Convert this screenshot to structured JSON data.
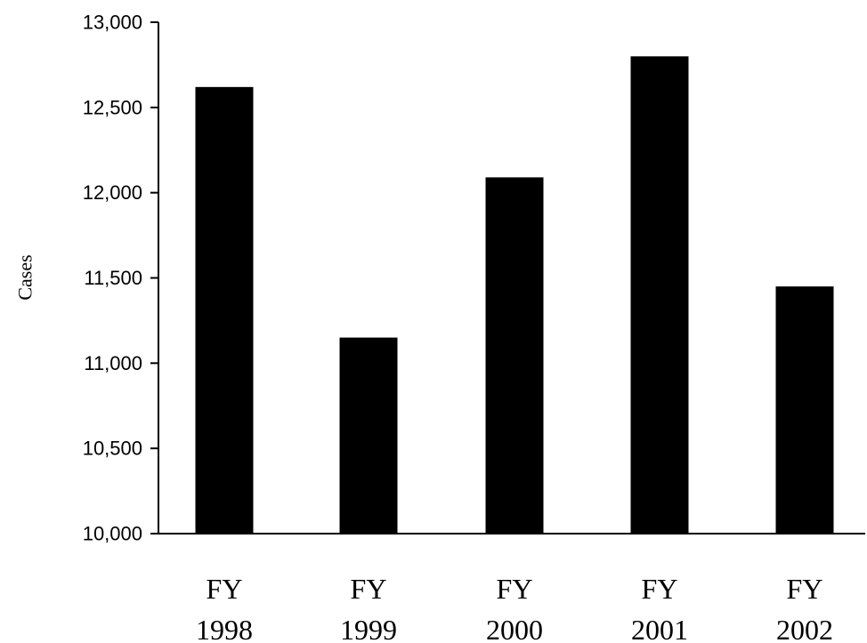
{
  "chart_data": {
    "type": "bar",
    "title": "",
    "xlabel": "",
    "ylabel": "Cases",
    "ylim": [
      10000,
      13000
    ],
    "yticks": [
      10000,
      10500,
      11000,
      11500,
      12000,
      12500,
      13000
    ],
    "ytick_labels": [
      "10,000",
      "10,500",
      "11,000",
      "11,500",
      "12,000",
      "12,500",
      "13,000"
    ],
    "categories": [
      {
        "line1": "FY",
        "line2": "1998"
      },
      {
        "line1": "FY",
        "line2": "1999"
      },
      {
        "line1": "FY",
        "line2": "2000"
      },
      {
        "line1": "FY",
        "line2": "2001"
      },
      {
        "line1": "FY",
        "line2": "2002"
      }
    ],
    "values": [
      12620,
      11150,
      12090,
      12800,
      11450
    ],
    "bar_color": "#000000",
    "grid": false,
    "legend": "none"
  }
}
